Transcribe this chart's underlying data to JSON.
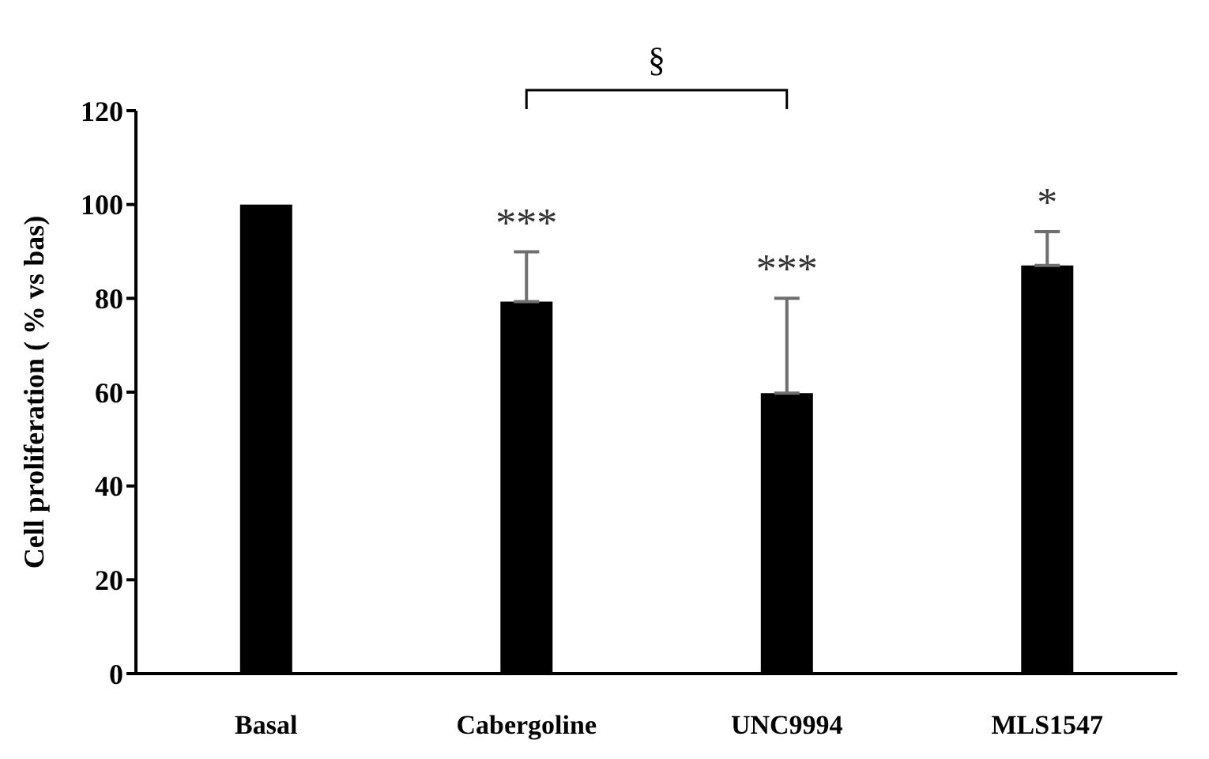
{
  "chart_data": {
    "type": "bar",
    "ylabel": "Cell proliferation  ( % vs bas)",
    "categories": [
      "Basal",
      "Cabergoline",
      "UNC9994",
      "MLS1547"
    ],
    "values": [
      100,
      79.3,
      59.8,
      87.0
    ],
    "color": "#000000",
    "errors": [
      null,
      [
        79.3,
        89.9
      ],
      [
        59.8,
        80.0
      ],
      [
        87.0,
        94.2
      ]
    ],
    "ylim": [
      0,
      120
    ],
    "yticks": [
      0,
      20,
      40,
      60,
      80,
      100,
      120
    ],
    "grid": false,
    "legend": false,
    "annotations": [
      {
        "text": "***",
        "x": "Cabergoline",
        "y": 89.9
      },
      {
        "text": "***",
        "x": "UNC9994",
        "y": 80.0
      },
      {
        "text": "*",
        "x": "MLS1547",
        "y": 94.2
      },
      "§"
    ]
  }
}
